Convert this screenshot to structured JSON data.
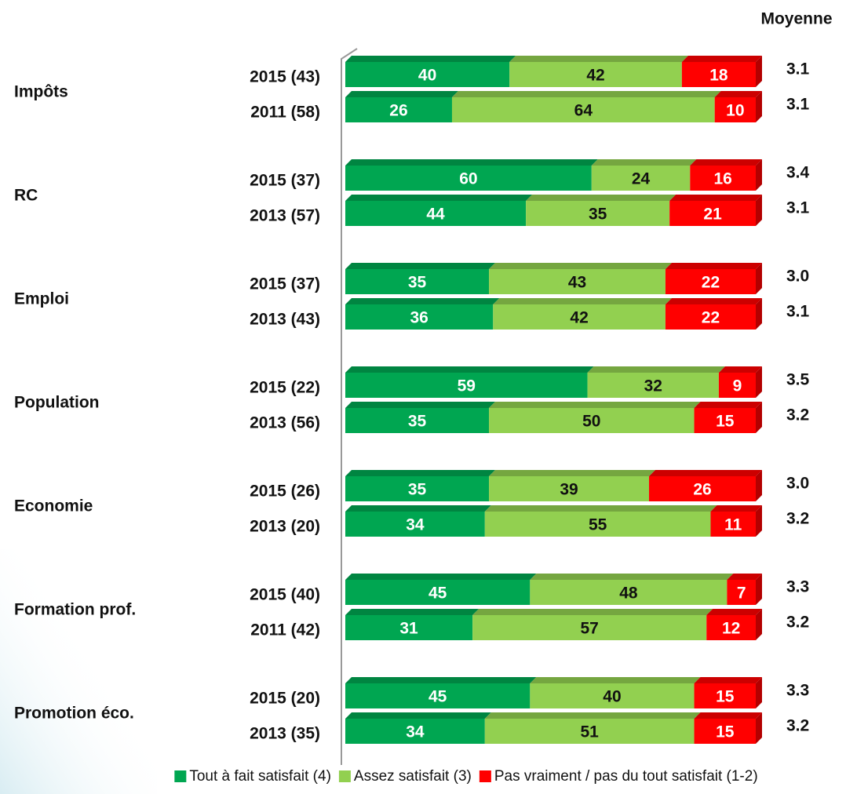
{
  "chart_data": {
    "type": "bar",
    "orientation": "horizontal",
    "stacked": true,
    "groups": [
      "Impôts",
      "RC",
      "Emploi",
      "Population",
      "Economie",
      "Formation prof.",
      "Promotion éco."
    ],
    "categories": [
      "2015 (43)",
      "2011 (58)",
      "2015 (37)",
      "2013 (57)",
      "2015 (37)",
      "2013 (43)",
      "2015 (22)",
      "2013 (56)",
      "2015 (26)",
      "2013 (20)",
      "2015 (40)",
      "2011 (42)",
      "2015 (20)",
      "2013 (35)"
    ],
    "series": [
      {
        "name": "Tout à fait satisfait (4)",
        "color": "#00a651",
        "values": [
          40,
          26,
          60,
          44,
          35,
          36,
          59,
          35,
          35,
          34,
          45,
          31,
          45,
          34
        ]
      },
      {
        "name": "Assez satisfait (3)",
        "color": "#92d050",
        "values": [
          42,
          64,
          24,
          35,
          43,
          42,
          32,
          50,
          39,
          55,
          48,
          57,
          40,
          51
        ]
      },
      {
        "name": "Pas vraiment / pas du tout satisfait (1-2)",
        "color": "#ff0000",
        "values": [
          18,
          10,
          16,
          21,
          22,
          22,
          9,
          15,
          26,
          11,
          7,
          12,
          15,
          15
        ]
      }
    ],
    "average_title": "Moyenne",
    "averages": [
      "3.1",
      "3.1",
      "3.4",
      "3.1",
      "3.0",
      "3.1",
      "3.5",
      "3.2",
      "3.0",
      "3.2",
      "3.3",
      "3.2",
      "3.3",
      "3.2"
    ],
    "xlim": [
      0,
      100
    ]
  }
}
